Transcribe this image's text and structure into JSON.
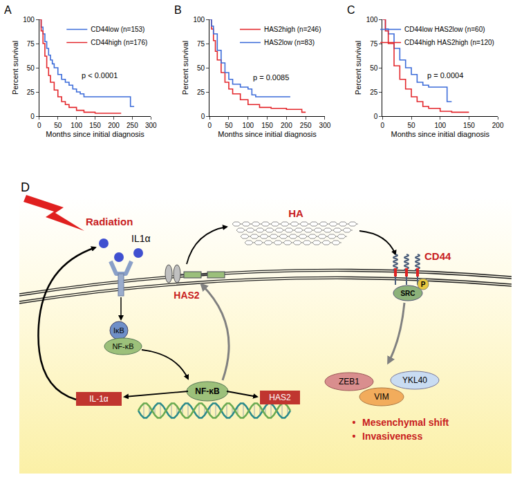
{
  "chart_data": [
    {
      "panel_label": "A",
      "type": "line",
      "xlabel": "Months since initial diagnosis",
      "ylabel": "Percent survival",
      "xlim": [
        0,
        300
      ],
      "xticks": [
        0,
        50,
        100,
        150,
        200,
        250,
        300
      ],
      "ylim": [
        0,
        100
      ],
      "yticks": [
        0,
        25,
        50,
        75,
        100
      ],
      "grid": false,
      "legend": "upper right",
      "line_style": "steps",
      "series": [
        {
          "name": "CD44low (n=153)",
          "color": "#3b6bd9",
          "x": [
            0,
            5,
            10,
            15,
            20,
            25,
            30,
            35,
            40,
            50,
            60,
            70,
            80,
            90,
            100,
            110,
            120,
            240,
            245,
            255
          ],
          "values": [
            100,
            92,
            85,
            77,
            70,
            63,
            58,
            54,
            50,
            43,
            38,
            35,
            32,
            28,
            25,
            23,
            20,
            20,
            10,
            10
          ]
        },
        {
          "name": "CD44high (n=176)",
          "color": "#e3262b",
          "x": [
            0,
            5,
            10,
            15,
            20,
            25,
            30,
            40,
            50,
            60,
            70,
            80,
            100,
            120,
            150,
            220
          ],
          "values": [
            100,
            88,
            75,
            62,
            50,
            42,
            35,
            27,
            20,
            15,
            12,
            9,
            6,
            4,
            3,
            3
          ]
        }
      ],
      "annotations": [
        {
          "text": "p < 0.0001",
          "x": 110,
          "y": 42
        }
      ]
    },
    {
      "panel_label": "B",
      "type": "line",
      "xlabel": "Months since initial diagnosis",
      "ylabel": "Percent survival",
      "xlim": [
        0,
        300
      ],
      "xticks": [
        0,
        50,
        100,
        150,
        200,
        250,
        300
      ],
      "ylim": [
        0,
        100
      ],
      "yticks": [
        0,
        25,
        50,
        75,
        100
      ],
      "grid": false,
      "legend": "upper right",
      "line_style": "steps",
      "series": [
        {
          "name": "HAS2high (n=246)",
          "color": "#e3262b",
          "x": [
            0,
            5,
            10,
            15,
            20,
            30,
            40,
            50,
            60,
            80,
            100,
            130,
            160,
            200,
            240,
            250
          ],
          "values": [
            100,
            90,
            78,
            67,
            58,
            45,
            35,
            28,
            23,
            17,
            12,
            9,
            8,
            7,
            4,
            4
          ]
        },
        {
          "name": "HAS2low (n=83)",
          "color": "#3b6bd9",
          "x": [
            0,
            5,
            10,
            20,
            30,
            40,
            50,
            60,
            80,
            100,
            110,
            120,
            210
          ],
          "values": [
            100,
            93,
            85,
            68,
            55,
            45,
            38,
            33,
            30,
            28,
            22,
            20,
            20
          ]
        }
      ],
      "annotations": [
        {
          "text": "p = 0.0085",
          "x": 110,
          "y": 40
        }
      ]
    },
    {
      "panel_label": "C",
      "type": "line",
      "xlabel": "Months since initial diagnosis",
      "ylabel": "Percent survival",
      "xlim": [
        0,
        200
      ],
      "xticks": [
        0,
        50,
        100,
        150,
        200
      ],
      "ylim": [
        0,
        100
      ],
      "yticks": [
        0,
        25,
        50,
        75,
        100
      ],
      "grid": false,
      "legend": "upper right",
      "line_style": "steps",
      "series": [
        {
          "name": "CD44low HAS2low (n=60)",
          "color": "#3b6bd9",
          "x": [
            0,
            5,
            10,
            20,
            30,
            40,
            50,
            60,
            70,
            80,
            112,
            120
          ],
          "values": [
            100,
            90,
            85,
            70,
            58,
            50,
            43,
            35,
            32,
            30,
            15,
            15
          ]
        },
        {
          "name": "CD44high HAS2high (n=120)",
          "color": "#e3262b",
          "x": [
            0,
            5,
            10,
            20,
            30,
            40,
            50,
            60,
            70,
            80,
            100,
            120,
            150
          ],
          "values": [
            100,
            88,
            75,
            52,
            38,
            28,
            20,
            15,
            10,
            8,
            5,
            4,
            4
          ]
        }
      ],
      "annotations": [
        {
          "text": "p = 0.0004",
          "x": 75,
          "y": 42
        }
      ]
    }
  ],
  "diagram": {
    "panel_label": "D",
    "labels": {
      "radiation": "Radiation",
      "ligand": "IL1α",
      "ha": "HA",
      "cd44": "CD44",
      "has2_protein": "HAS2",
      "ikb": "IκB",
      "nfkb_cytoplasm": "NF-κB",
      "nfkb_nucleus": "NF-κB",
      "gene_il1a": "IL-1α",
      "gene_has2": "HAS2",
      "src": "SRC",
      "phospho": "P",
      "zeb1": "ZEB1",
      "ykl40": "YKL40",
      "vim": "VIM"
    },
    "bullet": "•",
    "outcomes": [
      "Mesenchymal shift",
      "Invasiveness"
    ]
  }
}
